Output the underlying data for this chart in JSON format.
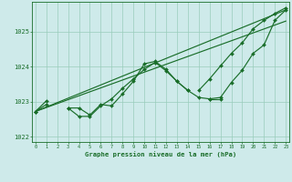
{
  "title": "Graphe pression niveau de la mer (hPa)",
  "background_color": "#ceeaea",
  "grid_color": "#99ccbb",
  "line_color": "#1a6e2a",
  "x_hours": [
    0,
    1,
    2,
    3,
    4,
    5,
    6,
    7,
    8,
    9,
    10,
    11,
    12,
    13,
    14,
    15,
    16,
    17,
    18,
    19,
    20,
    21,
    22,
    23
  ],
  "series_wavy1": [
    1022.72,
    null,
    null,
    1022.82,
    1022.58,
    1022.58,
    1022.88,
    1023.08,
    1023.38,
    1023.65,
    1023.92,
    1024.12,
    1023.88,
    1023.58,
    1023.32,
    1023.12,
    1023.08,
    1023.12,
    1023.55,
    1023.9,
    1024.38,
    1024.62,
    1025.32,
    1025.62
  ],
  "series_wavy2": [
    1022.72,
    1022.92,
    null,
    1022.82,
    1022.82,
    1022.62,
    1022.92,
    1022.88,
    1023.22,
    1023.58,
    1024.08,
    1024.15,
    1023.92,
    1023.58,
    1023.32,
    null,
    1023.08,
    1023.08,
    null,
    null,
    null,
    null,
    null,
    null
  ],
  "series_straight1": [
    1022.72,
    1023.02,
    null,
    null,
    null,
    null,
    null,
    null,
    null,
    null,
    null,
    null,
    null,
    null,
    null,
    1023.32,
    1023.65,
    1024.02,
    1024.38,
    1024.68,
    1025.08,
    1025.32,
    1025.52,
    1025.68
  ],
  "series_straight2_pts": [
    [
      0,
      1022.72
    ],
    [
      23,
      1025.62
    ]
  ],
  "series_straight3_pts": [
    [
      0,
      1022.72
    ],
    [
      23,
      1025.3
    ]
  ],
  "ylim": [
    1021.85,
    1025.85
  ],
  "yticks": [
    1022,
    1023,
    1024,
    1025
  ],
  "xlim": [
    -0.3,
    23.3
  ]
}
